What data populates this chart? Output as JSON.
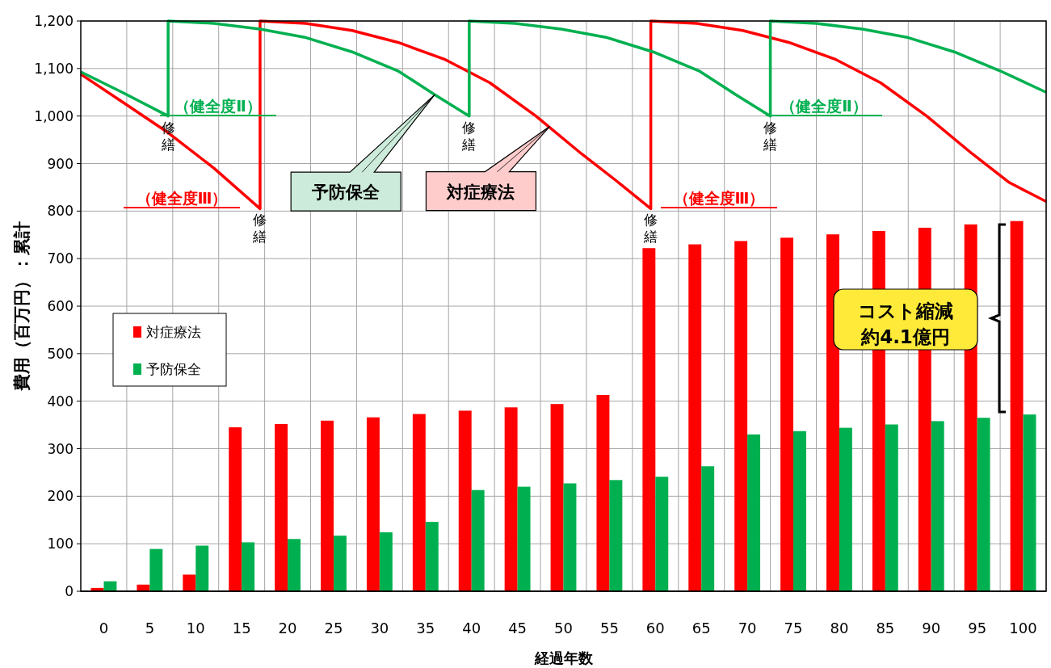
{
  "chart_data": {
    "type": "bar",
    "xlabel": "経過年数",
    "ylabel": "費用（百万円）：累計",
    "x": [
      0,
      5,
      10,
      15,
      20,
      25,
      30,
      35,
      40,
      45,
      50,
      55,
      60,
      65,
      70,
      75,
      80,
      85,
      90,
      95,
      100
    ],
    "xlim": [
      -2.5,
      102.5
    ],
    "xticks": [
      0,
      5,
      10,
      15,
      20,
      25,
      30,
      35,
      40,
      45,
      50,
      55,
      60,
      65,
      70,
      75,
      80,
      85,
      90,
      95,
      100
    ],
    "ylim": [
      0,
      1200
    ],
    "yticks": [
      0,
      100,
      200,
      300,
      400,
      500,
      600,
      700,
      800,
      900,
      {
        "value": 1000,
        "label": "1,000"
      },
      {
        "value": 1100,
        "label": "1,100"
      },
      {
        "value": 1200,
        "label": "1,200"
      }
    ],
    "grid": true,
    "legend": "left",
    "series": [
      {
        "name": "対症療法",
        "color": "#ff0000",
        "values": [
          7,
          14,
          35,
          345,
          352,
          359,
          366,
          373,
          380,
          387,
          394,
          413,
          722,
          730,
          737,
          744,
          751,
          758,
          765,
          772,
          779
        ]
      },
      {
        "name": "予防保全",
        "color": "#00b050",
        "values": [
          21,
          89,
          96,
          103,
          110,
          117,
          124,
          146,
          213,
          220,
          227,
          234,
          241,
          263,
          330,
          337,
          344,
          351,
          358,
          365,
          372
        ]
      },
      {
        "type": "line",
        "color": "#ff0000",
        "x": [
          -2.5,
          2,
          7,
          12,
          17,
          17,
          22,
          27,
          32,
          37,
          42,
          47,
          52,
          56,
          59.5,
          59.5,
          64.5,
          69.5,
          74.5,
          79.5,
          84.5,
          89.5,
          94.5,
          98.5,
          102.5
        ],
        "values": [
          1088,
          1030,
          965,
          890,
          805,
          1200,
          1195,
          1180,
          1155,
          1120,
          1070,
          1000,
          920,
          860,
          805,
          1200,
          1195,
          1180,
          1155,
          1120,
          1070,
          1000,
          920,
          860,
          820
        ]
      },
      {
        "type": "line",
        "color": "#00b050",
        "x": [
          -2.5,
          2,
          7,
          7,
          12,
          17,
          22,
          27,
          32,
          36,
          39.75,
          39.75,
          44.75,
          49.75,
          54.75,
          59.75,
          64.75,
          68.75,
          72.5,
          72.5,
          77.5,
          82.5,
          87.5,
          92.5,
          97.5,
          102.5
        ],
        "values": [
          1093,
          1050,
          1000,
          1200,
          1195,
          1183,
          1165,
          1135,
          1095,
          1045,
          1000,
          1200,
          1195,
          1183,
          1165,
          1135,
          1095,
          1045,
          1000,
          1200,
          1195,
          1183,
          1165,
          1135,
          1095,
          1050
        ]
      }
    ],
    "annotations": [
      "（健全度Ⅱ）",
      "（健全度Ⅱ）",
      "（健全度Ⅲ）",
      "（健全度Ⅲ）",
      {
        "text": "修繕",
        "x": 7,
        "y": 1000
      },
      {
        "text": "修繕",
        "x": 17,
        "y": 805
      },
      {
        "text": "修繕",
        "x": 39.75,
        "y": 1000
      },
      {
        "text": "修繕",
        "x": 59.5,
        "y": 805
      },
      {
        "text": "修繕",
        "x": 72.5,
        "y": 1000
      },
      {
        "text": "予防保全",
        "x": 36,
        "y": 1045
      },
      {
        "text": "対症療法",
        "x": 48.5,
        "y": 978
      },
      "コスト縮減",
      "約4.1億円"
    ]
  }
}
